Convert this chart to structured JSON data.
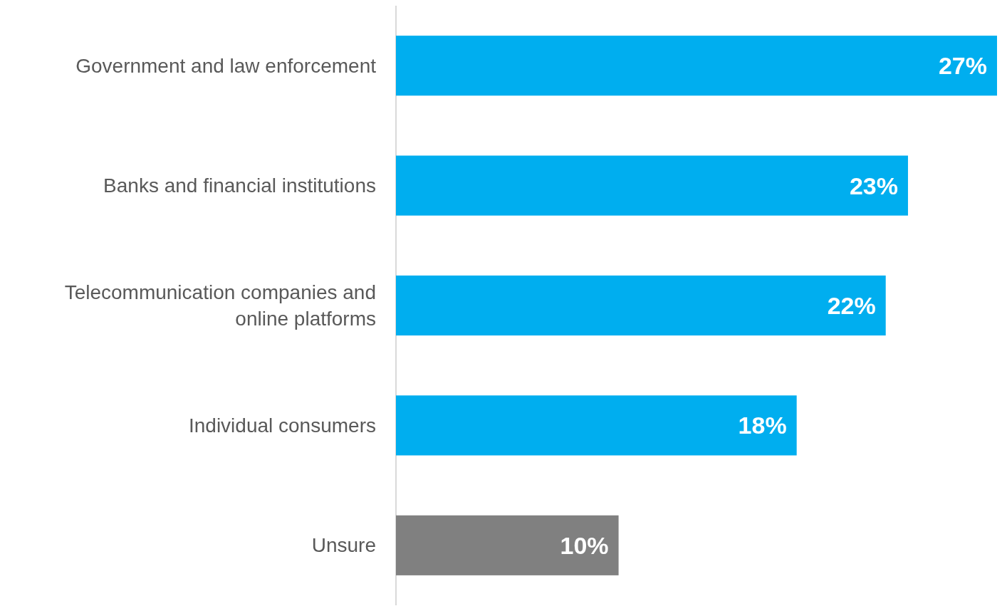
{
  "chart_data": {
    "type": "bar",
    "orientation": "horizontal",
    "categories": [
      "Government and law enforcement",
      "Banks and financial institutions",
      "Telecommunication companies and online platforms",
      "Individual consumers",
      "Unsure"
    ],
    "values": [
      27,
      23,
      22,
      18,
      10
    ],
    "colors": [
      "#00aeef",
      "#00aeef",
      "#00aeef",
      "#00aeef",
      "#808080"
    ],
    "value_labels": [
      "27%",
      "23%",
      "22%",
      "18%",
      "10%"
    ]
  }
}
